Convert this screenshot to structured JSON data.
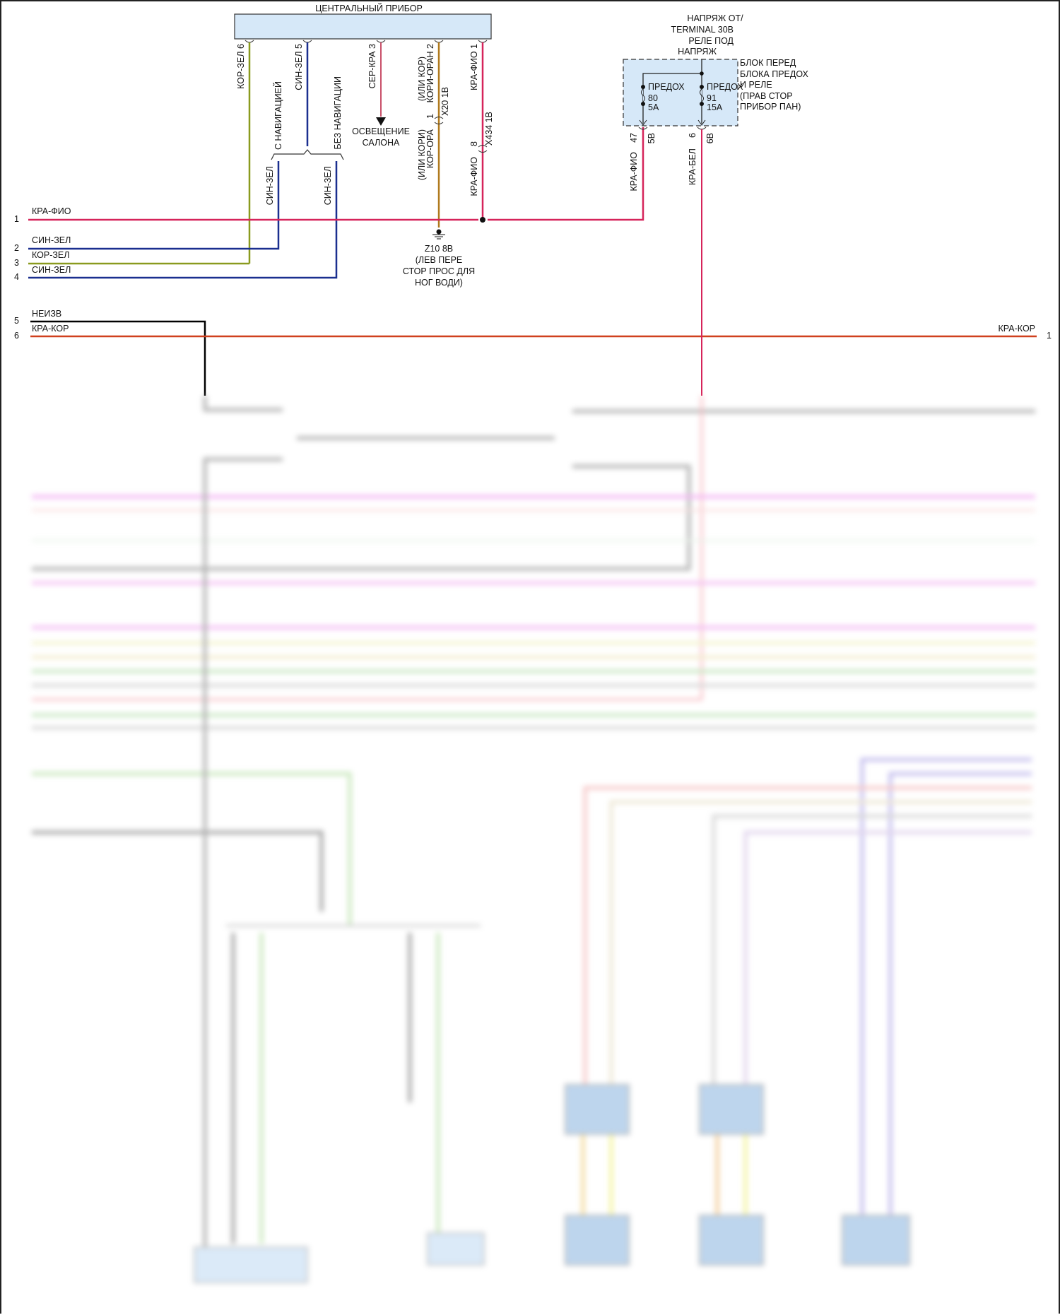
{
  "module": {
    "title": "ЦЕНТРАЛЬНЫЙ ПРИБОР",
    "fill": "#d6e8f8"
  },
  "module_pins": [
    {
      "label": "КОР-ЗЕЛ 6",
      "color": "#8a9a1e"
    },
    {
      "label": "СИН-ЗЕЛ 5",
      "color": "#1a2f8f"
    },
    {
      "label": "СЕР-КРА 3",
      "color": "#c9506a"
    },
    {
      "label": "(ИЛИ КОР)",
      "label2": "КОРИ-ОРАН 2",
      "connector_pin": "1",
      "connector": "X20 1B",
      "lower_label": "(ИЛИ КОРИ)",
      "lower_label2": "КОР-ОРА",
      "color": "#b07a1e"
    },
    {
      "label": "КРА-ФИО 1",
      "connector_pin": "8",
      "connector": "X434 1B",
      "lower_label": "КРА-ФИО",
      "color": "#d6245a"
    }
  ],
  "nav_options": {
    "with_nav": "С НАВИГАЦИЕЙ",
    "without_nav": "БЕЗ НАВИГАЦИИ",
    "with_nav_wire": "СИН-ЗЕЛ",
    "without_nav_wire": "СИН-ЗЕЛ"
  },
  "interior_light": {
    "line1": "ОСВЕЩЕНИЕ",
    "line2": "САЛОНА"
  },
  "ground": {
    "lines": [
      "Z10 8B",
      "(ЛЕВ ПЕРЕ",
      "СТОР ПРОС ДЛЯ",
      "НОГ ВОДИ)"
    ]
  },
  "left_wires": [
    {
      "num": "1",
      "label": "КРА-ФИО",
      "color": "#d6245a"
    },
    {
      "num": "2",
      "label": "СИН-ЗЕЛ",
      "color": "#1a2f8f"
    },
    {
      "num": "3",
      "label": "КОР-ЗЕЛ",
      "color": "#8a9a1e"
    },
    {
      "num": "4",
      "label": "СИН-ЗЕЛ",
      "color": "#1a2f8f"
    },
    {
      "num": "5",
      "label": "НЕИЗВ",
      "color": "#000000"
    },
    {
      "num": "6",
      "label": "КРА-КОР",
      "color": "#d0401e"
    }
  ],
  "right_wire": {
    "num": "1",
    "label": "КРА-КОР"
  },
  "fuse_block": {
    "supply": [
      "НАПРЯЖ ОТ/",
      "TERMINAL 30B",
      "РЕЛЕ ПОД",
      "НАПРЯЖ"
    ],
    "name": [
      "БЛОК ПЕРЕД",
      "БЛОКА ПРЕДОХ",
      "И РЕЛЕ",
      "(ПРАВ СТОР",
      "ПРИБОР ПАН)"
    ],
    "fill": "#d6e8f8",
    "fuses": [
      {
        "label": "ПРЕДОХ",
        "number": "80",
        "rating": "5A",
        "pin": "47",
        "connector": "5B",
        "wire": "КРА-ФИО"
      },
      {
        "label": "ПРЕДОХ",
        "number": "91",
        "rating": "15A",
        "pin": "6",
        "connector": "6B",
        "wire": "КРА-БЕЛ"
      }
    ]
  }
}
